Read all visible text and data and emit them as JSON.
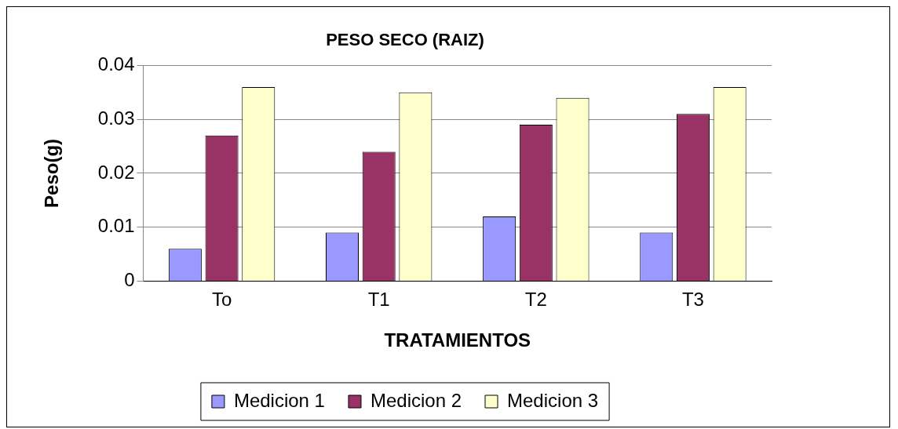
{
  "chart_data": {
    "type": "bar",
    "title": "PESO SECO (RAIZ)",
    "xlabel": "TRATAMIENTOS",
    "ylabel": "Peso(g)",
    "categories": [
      "To",
      "T1",
      "T2",
      "T3"
    ],
    "series": [
      {
        "name": "Medicion 1",
        "color": "#9999ff",
        "values": [
          0.006,
          0.009,
          0.012,
          0.009
        ]
      },
      {
        "name": "Medicion 2",
        "color": "#993366",
        "values": [
          0.027,
          0.024,
          0.029,
          0.031
        ]
      },
      {
        "name": "Medicion 3",
        "color": "#ffffcc",
        "values": [
          0.036,
          0.035,
          0.034,
          0.036
        ]
      }
    ],
    "ylim": [
      0,
      0.04
    ],
    "yticks": [
      0,
      0.01,
      0.02,
      0.03,
      0.04
    ],
    "grid": "y",
    "legend": "bottom"
  }
}
